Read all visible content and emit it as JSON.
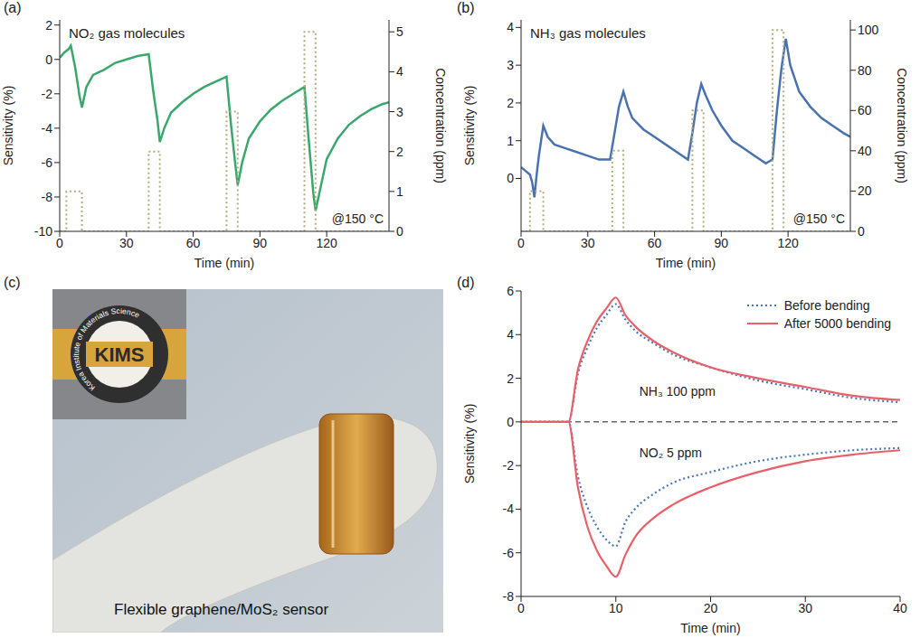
{
  "chart_data": [
    {
      "label": "(a)",
      "type": "line",
      "title": "NO₂ gas molecules",
      "annotation": "@150 °C",
      "xlabel": "Time (min)",
      "ylabel": "Sensitivity (%)",
      "y2label": "Concentration (ppm)",
      "xlim": [
        0,
        148
      ],
      "xticks": [
        0,
        30,
        60,
        90,
        120
      ],
      "ylim": [
        -10,
        2.3
      ],
      "yticks": [
        -10,
        -8,
        -6,
        -4,
        -2,
        0,
        2
      ],
      "y2lim": [
        0,
        5.3
      ],
      "y2ticks": [
        0,
        1,
        2,
        3,
        4,
        5
      ],
      "series": [
        {
          "color": "#3aa76d",
          "line_style": "solid",
          "x": [
            0,
            2,
            4,
            5,
            7,
            9,
            10,
            12,
            15,
            20,
            25,
            30,
            35,
            40,
            42,
            44,
            45,
            47,
            50,
            55,
            60,
            65,
            70,
            75,
            77,
            79,
            80,
            82,
            85,
            90,
            95,
            100,
            105,
            110,
            112,
            114,
            115,
            117,
            120,
            125,
            130,
            135,
            140,
            145,
            148
          ],
          "values": [
            0.1,
            0.4,
            0.6,
            0.8,
            -0.5,
            -2.2,
            -2.8,
            -1.6,
            -0.9,
            -0.6,
            -0.2,
            0.0,
            0.2,
            0.3,
            -1.8,
            -3.6,
            -4.8,
            -4.0,
            -3.1,
            -2.5,
            -2.0,
            -1.6,
            -1.3,
            -1.0,
            -3.8,
            -6.2,
            -7.3,
            -6.0,
            -4.6,
            -3.6,
            -2.9,
            -2.4,
            -2.0,
            -1.6,
            -4.8,
            -7.8,
            -8.8,
            -7.6,
            -5.8,
            -4.6,
            -3.8,
            -3.3,
            -2.9,
            -2.6,
            -2.5
          ]
        },
        {
          "axis": "y2",
          "color": "#b3ab7c",
          "line_style": "dotted",
          "x": [
            0,
            3,
            3,
            10,
            10,
            40,
            40,
            45,
            45,
            75,
            75,
            80,
            80,
            110,
            110,
            115,
            115,
            148
          ],
          "values": [
            0,
            0,
            1,
            1,
            0,
            0,
            2,
            2,
            0,
            0,
            3,
            3,
            0,
            0,
            5,
            5,
            0,
            0
          ]
        }
      ]
    },
    {
      "label": "(b)",
      "type": "line",
      "title": "NH₃ gas molecules",
      "annotation": "@150 °C",
      "xlabel": "Time (min)",
      "ylabel": "Sensitivity (%)",
      "y2label": "Concentration (ppm)",
      "xlim": [
        0,
        148
      ],
      "xticks": [
        0,
        30,
        60,
        90,
        120
      ],
      "ylim": [
        -1.4,
        4.2
      ],
      "yticks": [
        0,
        1,
        2,
        3,
        4
      ],
      "y2lim": [
        0,
        105
      ],
      "y2ticks": [
        0,
        20,
        40,
        60,
        80,
        100
      ],
      "series": [
        {
          "color": "#4a72b0",
          "line_style": "solid",
          "x": [
            0,
            2,
            4,
            5,
            6,
            7,
            8,
            10,
            12,
            15,
            20,
            25,
            30,
            35,
            40,
            42,
            44,
            46,
            48,
            50,
            55,
            60,
            65,
            70,
            75,
            77,
            79,
            81,
            83,
            86,
            90,
            95,
            100,
            105,
            110,
            113,
            115,
            117,
            119,
            121,
            125,
            130,
            135,
            140,
            145,
            148
          ],
          "values": [
            0.3,
            0.2,
            0.1,
            -0.1,
            -0.5,
            0.1,
            0.6,
            1.4,
            1.1,
            0.9,
            0.8,
            0.7,
            0.6,
            0.5,
            0.5,
            1.2,
            1.9,
            2.3,
            1.9,
            1.6,
            1.3,
            1.1,
            0.9,
            0.7,
            0.5,
            1.2,
            2.0,
            2.5,
            2.2,
            1.8,
            1.4,
            1.0,
            0.8,
            0.6,
            0.4,
            0.5,
            1.8,
            2.9,
            3.7,
            3.0,
            2.3,
            1.9,
            1.6,
            1.4,
            1.2,
            1.1
          ]
        },
        {
          "axis": "y2",
          "color": "#b3ab7c",
          "line_style": "dotted",
          "x": [
            0,
            4,
            4,
            10,
            10,
            41,
            41,
            46,
            46,
            77,
            77,
            82,
            82,
            113,
            113,
            118,
            118,
            148
          ],
          "values": [
            0,
            0,
            20,
            20,
            0,
            0,
            40,
            40,
            0,
            0,
            60,
            60,
            0,
            0,
            100,
            100,
            0,
            0
          ]
        }
      ]
    },
    {
      "label": "(c)",
      "type": "photo",
      "logo": "KIMS",
      "logo_ring": "Korea Institute of Materials Science",
      "caption": "Flexible graphene/MoS₂ sensor"
    },
    {
      "label": "(d)",
      "type": "line",
      "xlabel": "Time (min)",
      "ylabel": "Sensitivity (%)",
      "xlim": [
        0,
        40
      ],
      "xticks": [
        0,
        10,
        20,
        30,
        40
      ],
      "ylim": [
        -8,
        6
      ],
      "yticks": [
        -8,
        -6,
        -4,
        -2,
        0,
        2,
        4,
        6
      ],
      "legend": "upper right",
      "reference_y": 0,
      "annotations": [
        {
          "text": "NH₃ 100 ppm",
          "x": 12,
          "y": 1.4
        },
        {
          "text": "NO₂ 5 ppm",
          "x": 12,
          "y": -1.4
        }
      ],
      "x": [
        0,
        5,
        6,
        7,
        8,
        9,
        10,
        11,
        12,
        14,
        16,
        20,
        25,
        30,
        35,
        40
      ],
      "series": [
        {
          "name": "Before bending",
          "color": "#4a78b8",
          "line_style": "dotted",
          "values": [
            0,
            0,
            2.2,
            3.4,
            4.3,
            4.9,
            5.4,
            4.7,
            4.2,
            3.6,
            3.1,
            2.5,
            1.9,
            1.5,
            1.1,
            0.9
          ]
        },
        {
          "name": "After 5000 bending",
          "color": "#e8606a",
          "line_style": "solid",
          "values": [
            0,
            0,
            2.4,
            3.7,
            4.6,
            5.2,
            5.7,
            4.9,
            4.4,
            3.7,
            3.2,
            2.5,
            2.0,
            1.6,
            1.2,
            1.0
          ]
        },
        {
          "name": "Before bending",
          "color": "#4a78b8",
          "line_style": "dotted",
          "values": [
            0,
            0,
            -2.5,
            -3.9,
            -4.8,
            -5.4,
            -5.7,
            -4.6,
            -4.0,
            -3.3,
            -2.8,
            -2.3,
            -1.8,
            -1.5,
            -1.3,
            -1.2
          ]
        },
        {
          "name": "After 5000 bending",
          "color": "#e8606a",
          "line_style": "solid",
          "values": [
            0,
            0,
            -3.0,
            -4.8,
            -5.9,
            -6.6,
            -7.1,
            -6.1,
            -5.3,
            -4.4,
            -3.8,
            -3.0,
            -2.3,
            -1.8,
            -1.5,
            -1.3
          ]
        }
      ]
    }
  ]
}
